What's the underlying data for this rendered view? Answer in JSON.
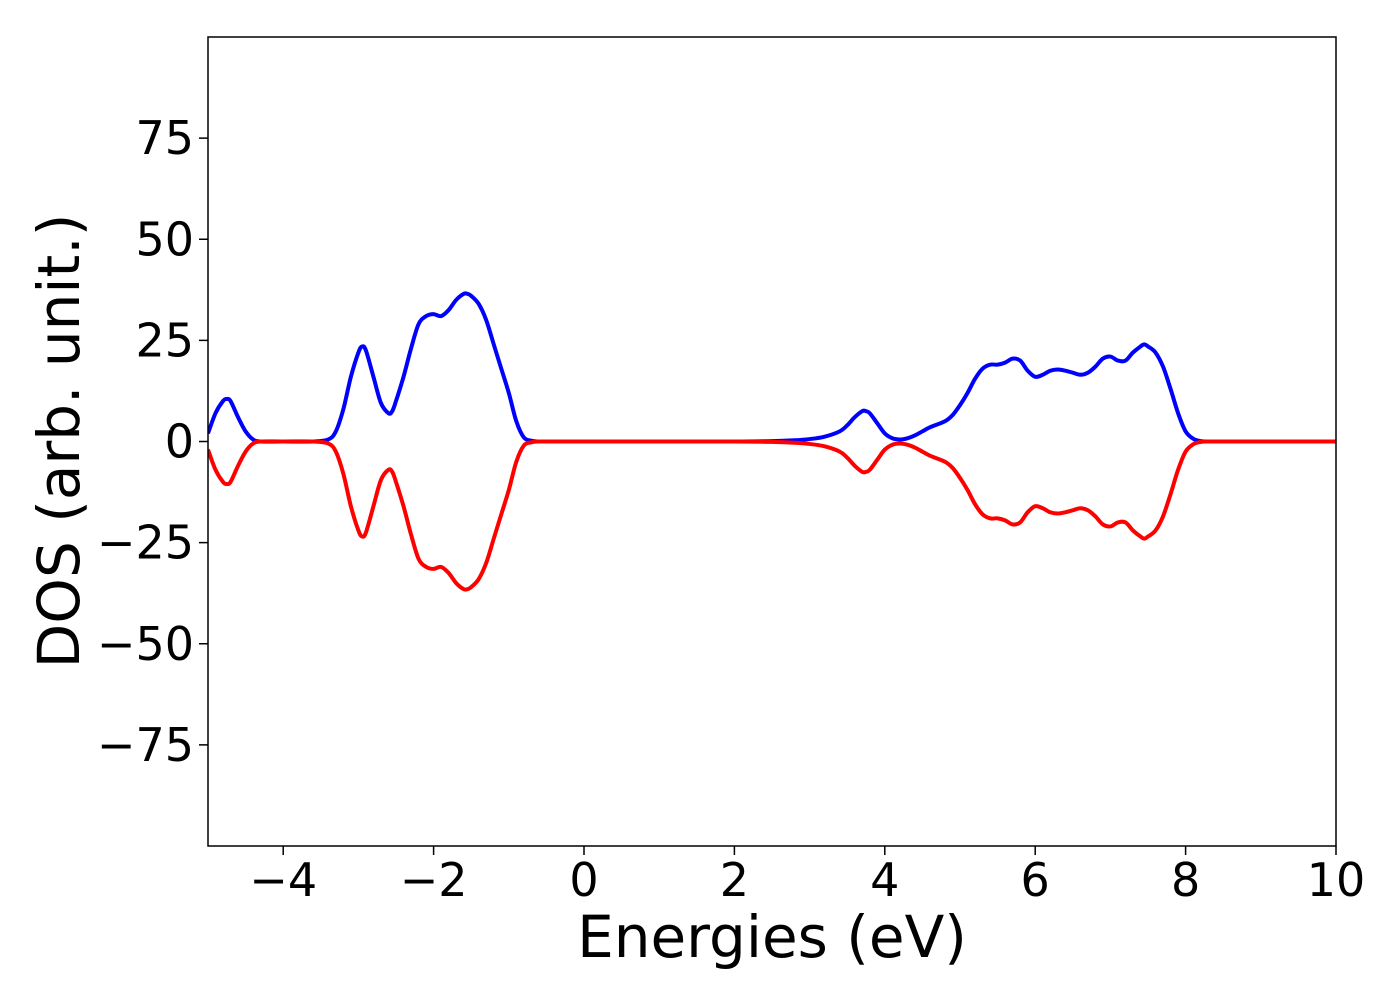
{
  "chart_data": {
    "type": "line",
    "title": "",
    "xlabel": "Energies (eV)",
    "ylabel": "DOS (arb. unit.)",
    "xlim": [
      -5,
      10
    ],
    "ylim": [
      -100,
      100
    ],
    "xticks": [
      -4,
      -2,
      0,
      2,
      4,
      6,
      8,
      10
    ],
    "xtick_labels": [
      "−4",
      "−2",
      "0",
      "2",
      "4",
      "6",
      "8",
      "10"
    ],
    "yticks": [
      -75,
      -50,
      -25,
      0,
      25,
      50,
      75
    ],
    "ytick_labels": [
      "−75",
      "−50",
      "−25",
      "0",
      "25",
      "50",
      "75"
    ],
    "grid": false,
    "legend": "none",
    "series": [
      {
        "color": "#0000ff",
        "x": [
          -5.0,
          -4.9,
          -4.8,
          -4.75,
          -4.7,
          -4.6,
          -4.5,
          -4.4,
          -4.3,
          -4.0,
          -3.6,
          -3.4,
          -3.3,
          -3.2,
          -3.1,
          -3.0,
          -2.95,
          -2.9,
          -2.8,
          -2.7,
          -2.6,
          -2.55,
          -2.5,
          -2.4,
          -2.3,
          -2.2,
          -2.1,
          -2.0,
          -1.9,
          -1.8,
          -1.7,
          -1.6,
          -1.55,
          -1.5,
          -1.4,
          -1.3,
          -1.2,
          -1.1,
          -1.0,
          -0.9,
          -0.8,
          -0.7,
          -0.6,
          -0.5,
          0.0,
          1.0,
          2.0,
          2.5,
          2.8,
          3.0,
          3.2,
          3.4,
          3.5,
          3.6,
          3.7,
          3.75,
          3.8,
          3.9,
          4.0,
          4.1,
          4.2,
          4.3,
          4.4,
          4.5,
          4.6,
          4.8,
          4.9,
          5.0,
          5.1,
          5.2,
          5.3,
          5.4,
          5.5,
          5.6,
          5.7,
          5.8,
          5.9,
          6.0,
          6.1,
          6.2,
          6.3,
          6.4,
          6.5,
          6.6,
          6.7,
          6.8,
          6.9,
          7.0,
          7.1,
          7.2,
          7.3,
          7.4,
          7.45,
          7.5,
          7.6,
          7.7,
          7.8,
          7.9,
          8.0,
          8.1,
          8.2,
          8.3,
          8.5,
          9.0,
          9.5,
          10.0
        ],
        "y": [
          2,
          7,
          10,
          10.5,
          10,
          6,
          2.5,
          0.5,
          0,
          0,
          0,
          0.5,
          2.5,
          8,
          16,
          22,
          23.5,
          22.5,
          16,
          9.5,
          7,
          7.5,
          10,
          16,
          23,
          29,
          31,
          31.5,
          31,
          32.5,
          35,
          36.5,
          36.5,
          36,
          34,
          30,
          24,
          18,
          12,
          5,
          1,
          0.2,
          0,
          0,
          0,
          0,
          0,
          0.1,
          0.3,
          0.6,
          1.2,
          2.5,
          4,
          6,
          7.5,
          7.5,
          7,
          4.5,
          2,
          0.8,
          0.5,
          0.8,
          1.5,
          2.5,
          3.5,
          5,
          6.5,
          9,
          12,
          15.5,
          18,
          19,
          19,
          19.5,
          20.5,
          20,
          17.5,
          16,
          16.5,
          17.5,
          17.8,
          17.5,
          17,
          16.5,
          17,
          18.5,
          20.5,
          21,
          20,
          20,
          22,
          23.5,
          24,
          23.5,
          22,
          18.5,
          13,
          7,
          2.5,
          0.7,
          0.1,
          0,
          0,
          0,
          0,
          0
        ]
      },
      {
        "color": "#ff0000",
        "x": [
          -5.0,
          -4.9,
          -4.8,
          -4.75,
          -4.7,
          -4.6,
          -4.5,
          -4.4,
          -4.3,
          -4.0,
          -3.6,
          -3.4,
          -3.3,
          -3.2,
          -3.1,
          -3.0,
          -2.95,
          -2.9,
          -2.8,
          -2.7,
          -2.6,
          -2.55,
          -2.5,
          -2.4,
          -2.3,
          -2.2,
          -2.1,
          -2.0,
          -1.9,
          -1.8,
          -1.7,
          -1.6,
          -1.55,
          -1.5,
          -1.4,
          -1.3,
          -1.2,
          -1.1,
          -1.0,
          -0.9,
          -0.8,
          -0.7,
          -0.6,
          -0.5,
          0.0,
          1.0,
          2.0,
          2.5,
          2.8,
          3.0,
          3.2,
          3.4,
          3.5,
          3.6,
          3.7,
          3.75,
          3.8,
          3.9,
          4.0,
          4.1,
          4.2,
          4.3,
          4.4,
          4.5,
          4.6,
          4.8,
          4.9,
          5.0,
          5.1,
          5.2,
          5.3,
          5.4,
          5.5,
          5.6,
          5.7,
          5.8,
          5.9,
          6.0,
          6.1,
          6.2,
          6.3,
          6.4,
          6.5,
          6.6,
          6.7,
          6.8,
          6.9,
          7.0,
          7.1,
          7.2,
          7.3,
          7.4,
          7.45,
          7.5,
          7.6,
          7.7,
          7.8,
          7.9,
          8.0,
          8.1,
          8.2,
          8.3,
          8.5,
          9.0,
          9.5,
          10.0
        ],
        "y": [
          -2,
          -7,
          -10,
          -10.5,
          -10,
          -6,
          -2.5,
          -0.5,
          0,
          0,
          0,
          -0.5,
          -2.5,
          -8,
          -16,
          -22,
          -23.5,
          -22.5,
          -16,
          -9.5,
          -7,
          -7.5,
          -10,
          -16,
          -23,
          -29,
          -31,
          -31.5,
          -31,
          -32.5,
          -35,
          -36.5,
          -36.5,
          -36,
          -34,
          -30,
          -24,
          -18,
          -12,
          -5,
          -1,
          -0.2,
          0,
          0,
          0,
          0,
          0,
          -0.1,
          -0.3,
          -0.6,
          -1.2,
          -2.5,
          -4,
          -6,
          -7.5,
          -7.5,
          -7,
          -4.5,
          -2,
          -0.8,
          -0.5,
          -0.8,
          -1.5,
          -2.5,
          -3.5,
          -5,
          -6.5,
          -9,
          -12,
          -15.5,
          -18,
          -19,
          -19,
          -19.5,
          -20.5,
          -20,
          -17.5,
          -16,
          -16.5,
          -17.5,
          -17.8,
          -17.5,
          -17,
          -16.5,
          -17,
          -18.5,
          -20.5,
          -21,
          -20,
          -20,
          -22,
          -23.5,
          -24,
          -23.5,
          -22,
          -18.5,
          -13,
          -7,
          -2.5,
          -0.7,
          -0.1,
          0,
          0,
          0,
          0,
          0
        ]
      }
    ]
  }
}
